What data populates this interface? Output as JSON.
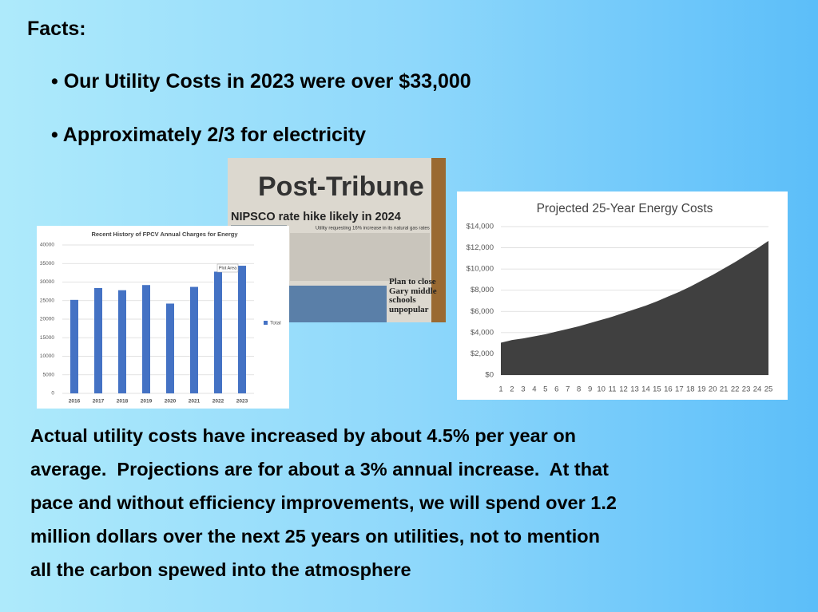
{
  "title": "Facts:",
  "bullets": [
    "Our Utility Costs in 2023 were over $33,000",
    "Approximately 2/3 for electricity"
  ],
  "newspaper": {
    "masthead": "Post-Tribune",
    "headline": "NIPSCO rate hike likely in 2024",
    "subhead": "Utility requesting 16% increase in its natural gas rates",
    "side_headline": "Plan to close Gary middle schools unpopular"
  },
  "chart_data": [
    {
      "type": "bar",
      "title": "Recent History of FPCV Annual Charges for Energy",
      "categories": [
        "2016",
        "2017",
        "2018",
        "2019",
        "2020",
        "2021",
        "2022",
        "2023"
      ],
      "series": [
        {
          "name": "Total",
          "color": "#4472c4",
          "values": [
            25200,
            28400,
            27800,
            29200,
            24200,
            28700,
            32800,
            34400
          ]
        }
      ],
      "ylim": [
        0,
        40000
      ],
      "yticks": [
        0,
        5000,
        10000,
        15000,
        20000,
        25000,
        30000,
        35000,
        40000
      ],
      "grid": true,
      "legend": "right",
      "annotation": "Plot Area"
    },
    {
      "type": "area",
      "title": "Projected 25-Year Energy Costs",
      "x": [
        1,
        2,
        3,
        4,
        5,
        6,
        7,
        8,
        9,
        10,
        11,
        12,
        13,
        14,
        15,
        16,
        17,
        18,
        19,
        20,
        21,
        22,
        23,
        24,
        25
      ],
      "values": [
        3050,
        3300,
        3450,
        3650,
        3850,
        4100,
        4350,
        4600,
        4900,
        5200,
        5500,
        5850,
        6200,
        6550,
        6950,
        7400,
        7850,
        8350,
        8900,
        9450,
        10050,
        10650,
        11300,
        11950,
        12650
      ],
      "color": "#404040",
      "xlim": [
        1,
        25
      ],
      "xticks": [
        1,
        2,
        3,
        4,
        5,
        6,
        7,
        8,
        9,
        10,
        11,
        12,
        13,
        14,
        15,
        16,
        17,
        18,
        19,
        20,
        21,
        22,
        23,
        24,
        25
      ],
      "ylim": [
        0,
        14000
      ],
      "yticks": [
        {
          "value": 0,
          "label": "$0"
        },
        {
          "value": 2000,
          "label": "$2,000"
        },
        {
          "value": 4000,
          "label": "$4,000"
        },
        {
          "value": 6000,
          "label": "$6,000"
        },
        {
          "value": 8000,
          "label": "$8,000"
        },
        {
          "value": 10000,
          "label": "$10,000"
        },
        {
          "value": 12000,
          "label": "$12,000"
        },
        {
          "value": 14000,
          "label": "$14,000"
        }
      ],
      "grid": true
    }
  ],
  "paragraph_lines": [
    "Actual utility costs have increased by about 4.5% per year on",
    "average.  Projections are for about a 3% annual increase.  At that",
    "pace and without efficiency improvements, we will spend over 1.2",
    "million dollars over the next 25 years on utilities, not to mention",
    "all the carbon spewed into the atmosphere"
  ]
}
